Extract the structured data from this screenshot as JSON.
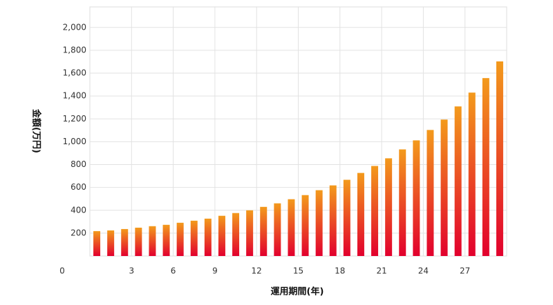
{
  "chart_data": {
    "type": "bar",
    "x_label": "運用期間(年)",
    "y_label": "金額(万円)",
    "x": [
      1,
      2,
      3,
      4,
      5,
      6,
      7,
      8,
      9,
      10,
      11,
      12,
      13,
      14,
      15,
      16,
      17,
      18,
      19,
      20,
      21,
      22,
      23,
      24,
      25,
      26,
      27,
      28,
      29,
      30
    ],
    "values": [
      218,
      224,
      236,
      248,
      261,
      273,
      291,
      309,
      327,
      352,
      376,
      400,
      430,
      461,
      497,
      533,
      576,
      618,
      667,
      727,
      788,
      855,
      933,
      1012,
      1103,
      1194,
      1309,
      1430,
      1557,
      1703
    ],
    "color": [
      "#f39a1c",
      "#e2002d"
    ],
    "xlim": [
      0,
      30
    ],
    "xticks": [
      0,
      3,
      6,
      9,
      12,
      15,
      18,
      21,
      24,
      27
    ],
    "ylim": [
      0,
      2180
    ],
    "yticks": [
      200,
      400,
      600,
      800,
      {
        "value": 1000,
        "label": "1,000"
      },
      {
        "value": 1200,
        "label": "1,200"
      },
      {
        "value": 1400,
        "label": "1,400"
      },
      {
        "value": 1600,
        "label": "1,600"
      },
      {
        "value": 1800,
        "label": "1,800"
      },
      {
        "value": 2000,
        "label": "2,000"
      }
    ],
    "grid": true
  }
}
